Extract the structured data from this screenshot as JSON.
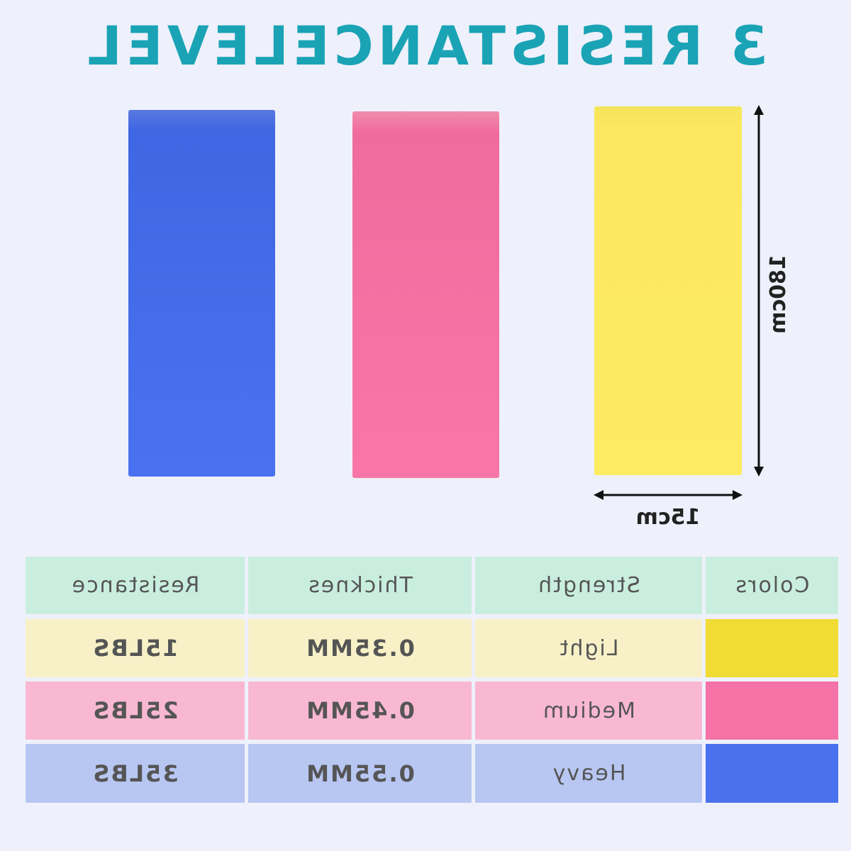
{
  "header": {
    "title": "3 RESISTANCELEVEL"
  },
  "dimensions": {
    "length": "180cm",
    "width": "15cm"
  },
  "table": {
    "header": [
      "Colors",
      "Strength",
      "Thicknes",
      "Resistance"
    ],
    "rows": [
      [
        "Light",
        "0.35MM",
        "15LBS"
      ],
      [
        "Medium",
        "0.45MM",
        "25LBS"
      ],
      [
        "Heavy",
        "0.55MM",
        "35LBS"
      ]
    ]
  }
}
